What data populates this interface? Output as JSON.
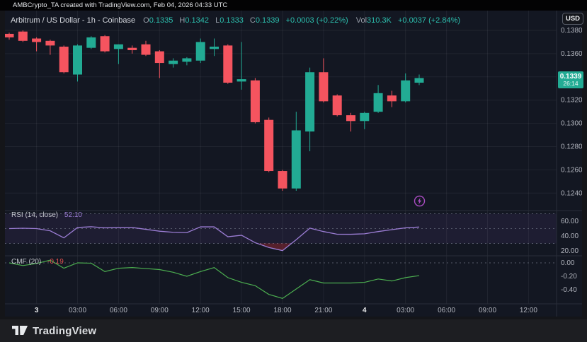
{
  "header": {
    "attribution": "AMBCrypto_TA created with TradingView.com, Feb 04, 2026 04:33 UTC"
  },
  "legend": {
    "instrument": "Arbitrum / US Dollar - 1h - Coinbase",
    "ohlc": [
      {
        "label": "O",
        "value": "0.1335"
      },
      {
        "label": "H",
        "value": "0.1342"
      },
      {
        "label": "L",
        "value": "0.1333"
      },
      {
        "label": "C",
        "value": "0.1339"
      }
    ],
    "change": "+0.0003 (+0.22%)",
    "vol_label": "Vol",
    "vol_value": "310.3K",
    "vol_change": "+0.0037 (+2.84%)"
  },
  "toolbar": {
    "currency_button": "USD"
  },
  "price_badge": {
    "price": "0.1339",
    "countdown": "26:14"
  },
  "price_axis_ticks": [
    "0.1380",
    "0.1360",
    "0.1340",
    "0.1320",
    "0.1300",
    "0.1280",
    "0.1260",
    "0.1240"
  ],
  "rsi_panel": {
    "title": "RSI (14, close)",
    "value": "52.10",
    "ticks": [
      "60.00",
      "40.00",
      "20.00"
    ]
  },
  "cmf_panel": {
    "title": "CMF (20)",
    "value": "-0.19",
    "ticks": [
      "0.00",
      "-0.20",
      "-0.40"
    ]
  },
  "time_axis": [
    {
      "i": 2,
      "label": "3",
      "bold": true
    },
    {
      "i": 5,
      "label": "03:00"
    },
    {
      "i": 8,
      "label": "06:00"
    },
    {
      "i": 11,
      "label": "09:00"
    },
    {
      "i": 14,
      "label": "12:00"
    },
    {
      "i": 17,
      "label": "15:00"
    },
    {
      "i": 20,
      "label": "18:00"
    },
    {
      "i": 23,
      "label": "21:00"
    },
    {
      "i": 26,
      "label": "4",
      "bold": true
    },
    {
      "i": 29,
      "label": "03:00"
    },
    {
      "i": 32,
      "label": "06:00"
    },
    {
      "i": 35,
      "label": "09:00"
    },
    {
      "i": 38,
      "label": "12:00"
    }
  ],
  "footer": {
    "brand": "TradingView"
  },
  "colors": {
    "up": "#22ab94",
    "down": "#f5545f",
    "rsi_line": "#9b7dd4",
    "rsi_band": "rgba(126,87,194,0.10)",
    "rsi_oversold": "rgba(242,54,69,0.30)",
    "cmf_line": "#4caf50",
    "grid": "rgba(255,255,255,0.06)",
    "divider": "#2a2e39",
    "axis_text": "#b2b5be",
    "axis_text_bold": "#e9eaec",
    "dashed": "#6b7080",
    "badge_bg": "#22ab94"
  },
  "chart_data": [
    {
      "type": "candlestick",
      "name": "Arbitrum / US Dollar, 1h, Coinbase",
      "x_labels": [
        "22:00",
        "23:00",
        "00:00",
        "01:00",
        "02:00",
        "03:00",
        "04:00",
        "05:00",
        "06:00",
        "07:00",
        "08:00",
        "09:00",
        "10:00",
        "11:00",
        "12:00",
        "13:00",
        "14:00",
        "15:00",
        "16:00",
        "17:00",
        "18:00",
        "19:00",
        "20:00",
        "21:00",
        "22:00",
        "23:00",
        "00:00",
        "01:00",
        "02:00",
        "03:00",
        "04:00"
      ],
      "day_markers": [
        {
          "index": 2,
          "label": "3"
        },
        {
          "index": 26,
          "label": "4"
        }
      ],
      "ohlc": [
        [
          0.1377,
          0.1378,
          0.1372,
          0.1374
        ],
        [
          0.1379,
          0.138,
          0.137,
          0.1371
        ],
        [
          0.1373,
          0.1374,
          0.1362,
          0.137
        ],
        [
          0.1371,
          0.1372,
          0.1359,
          0.1367
        ],
        [
          0.1366,
          0.1367,
          0.1343,
          0.1344
        ],
        [
          0.1342,
          0.1368,
          0.1336,
          0.1367
        ],
        [
          0.1365,
          0.1375,
          0.1364,
          0.1374
        ],
        [
          0.1375,
          0.1376,
          0.1361,
          0.1362
        ],
        [
          0.1364,
          0.1368,
          0.1351,
          0.1368
        ],
        [
          0.1365,
          0.1367,
          0.136,
          0.1363
        ],
        [
          0.1368,
          0.1371,
          0.1358,
          0.1359
        ],
        [
          0.1362,
          0.1363,
          0.1339,
          0.1352
        ],
        [
          0.1351,
          0.1356,
          0.1348,
          0.1354
        ],
        [
          0.1353,
          0.1357,
          0.135,
          0.1356
        ],
        [
          0.1354,
          0.1373,
          0.1352,
          0.137
        ],
        [
          0.1364,
          0.1373,
          0.1358,
          0.1366
        ],
        [
          0.1367,
          0.1368,
          0.1334,
          0.1335
        ],
        [
          0.1336,
          0.137,
          0.1329,
          0.1338
        ],
        [
          0.1337,
          0.1339,
          0.13,
          0.1301
        ],
        [
          0.1303,
          0.1305,
          0.1258,
          0.1259
        ],
        [
          0.1259,
          0.126,
          0.1242,
          0.1244
        ],
        [
          0.1244,
          0.131,
          0.1242,
          0.1294
        ],
        [
          0.1293,
          0.1348,
          0.1276,
          0.1344
        ],
        [
          0.1344,
          0.1356,
          0.1318,
          0.1319
        ],
        [
          0.1324,
          0.1325,
          0.1306,
          0.1307
        ],
        [
          0.1307,
          0.1309,
          0.1293,
          0.1302
        ],
        [
          0.1302,
          0.131,
          0.1295,
          0.1309
        ],
        [
          0.131,
          0.1333,
          0.1309,
          0.1326
        ],
        [
          0.1324,
          0.1328,
          0.1314,
          0.1319
        ],
        [
          0.1319,
          0.1343,
          0.1318,
          0.1337
        ],
        [
          0.1335,
          0.1342,
          0.1333,
          0.1339
        ]
      ],
      "ylim": [
        0.124,
        0.138
      ],
      "last_price": 0.1339
    },
    {
      "type": "line",
      "name": "RSI (14, close)",
      "values": [
        50,
        50.5,
        50,
        47,
        37.5,
        51.5,
        52.5,
        51,
        51.5,
        51.5,
        49,
        46.5,
        45,
        44.5,
        52.3,
        52.3,
        39,
        41,
        31,
        24.5,
        20.3,
        35,
        50.6,
        46,
        42.4,
        42.3,
        43,
        46,
        48.6,
        51,
        52.1
      ],
      "levels": {
        "upper": 70,
        "middle": 50,
        "lower": 30
      },
      "ylim": [
        13,
        74
      ],
      "last_value": 52.1
    },
    {
      "type": "line",
      "name": "CMF (20)",
      "values": [
        0.0,
        -0.04,
        -0.01,
        0.04,
        -0.08,
        0.0,
        -0.005,
        -0.13,
        -0.08,
        -0.07,
        -0.085,
        -0.1,
        -0.14,
        -0.2,
        -0.13,
        -0.07,
        -0.22,
        -0.29,
        -0.34,
        -0.47,
        -0.53,
        -0.39,
        -0.25,
        -0.3,
        -0.3,
        -0.3,
        -0.29,
        -0.24,
        -0.27,
        -0.22,
        -0.19
      ],
      "zero_level": 0,
      "ylim": [
        -0.62,
        0.1
      ],
      "last_value": -0.19
    }
  ]
}
